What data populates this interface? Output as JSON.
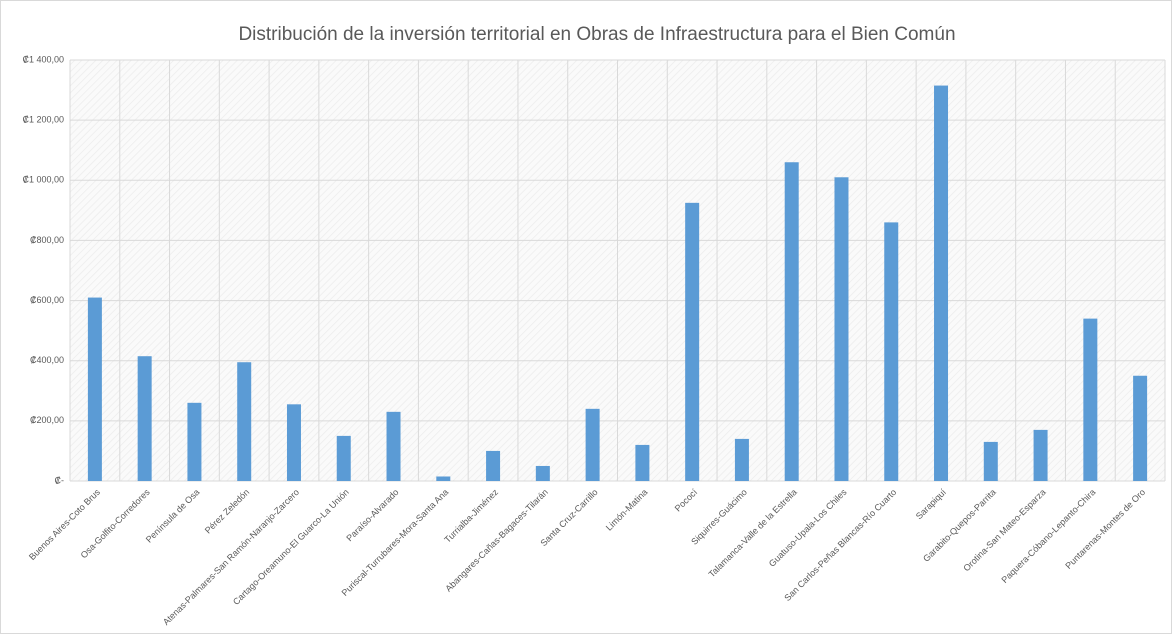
{
  "chart_data": {
    "type": "bar",
    "title": "Distribución de la inversión territorial en Obras de Infraestructura para el Bien Común",
    "categories": [
      "Buenos Aires-Coto Brus",
      "Osa-Golfito-Corredores",
      "Península de Osa",
      "Pérez Zeledón",
      "Atenas-Palmares-San Ramón-Naranjo-Zarcero",
      "Cartago-Oreamuno-El Guarco-La Unión",
      "Paraíso-Alvarado",
      "Puriscal-Turrubares-Mora-Santa Ana",
      "Turrialba-Jiménez",
      "Abangares-Cañas-Bagaces-Tilarán",
      "Santa Cruz-Carrillo",
      "Limón-Matina",
      "Pococí",
      "Siquirres-Guácimo",
      "Talamanca-Valle de la Estrella",
      "Guatuso-Upala-Los Chiles",
      "San Carlos-Peñas Blancas-Río Cuarto",
      "Sarapiquí",
      "Garabito-Quepos-Parrita",
      "Orotina-San Mateo-Esparza",
      "Paquera-Cóbano-Lepanto-Chira",
      "Puntarenas-Montes de Oro"
    ],
    "values": [
      610,
      415,
      260,
      395,
      255,
      150,
      230,
      15,
      100,
      50,
      240,
      120,
      925,
      140,
      1060,
      1010,
      860,
      1315,
      130,
      170,
      540,
      350
    ],
    "color": "#5b9bd5",
    "ylim": [
      0,
      1400
    ],
    "yticks": [
      {
        "value": 0,
        "label": "₡-"
      },
      {
        "value": 200,
        "label": "₡200,00"
      },
      {
        "value": 400,
        "label": "₡400,00"
      },
      {
        "value": 600,
        "label": "₡600,00"
      },
      {
        "value": 800,
        "label": "₡800,00"
      },
      {
        "value": 1000,
        "label": "₡1 000,00"
      },
      {
        "value": 1200,
        "label": "₡1 200,00"
      },
      {
        "value": 1400,
        "label": "₡1 400,00"
      }
    ],
    "grid": true
  }
}
